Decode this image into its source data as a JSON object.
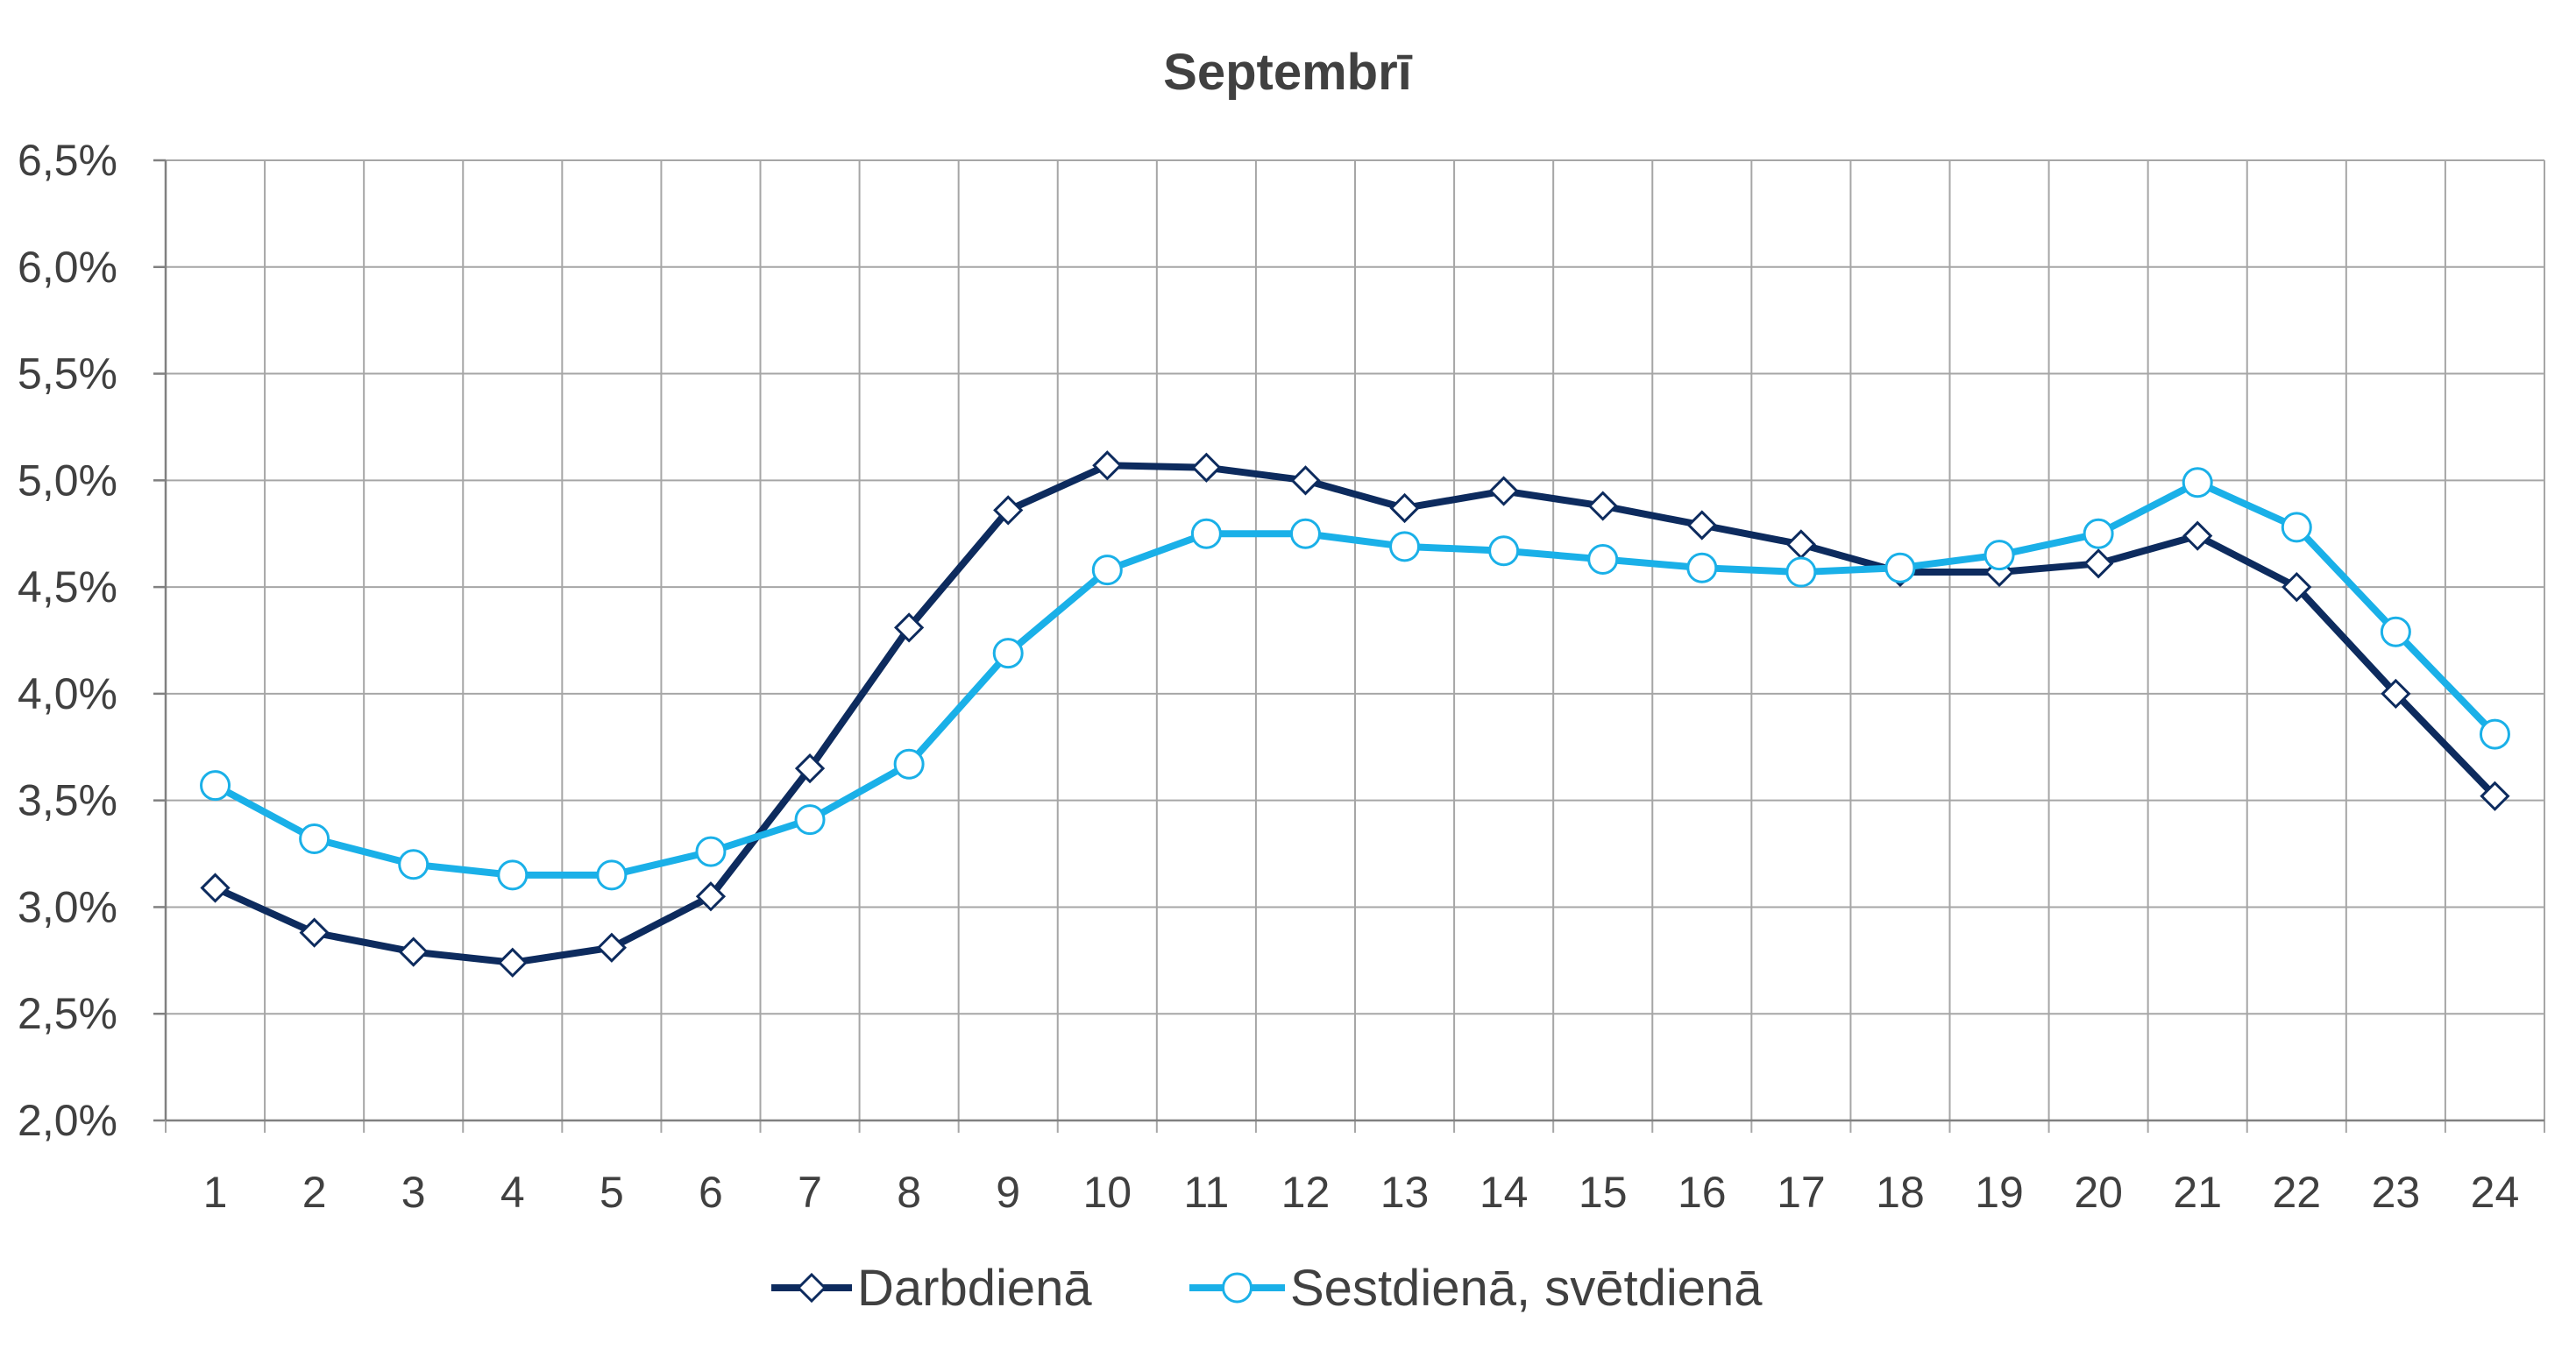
{
  "chart_data": {
    "type": "line",
    "title": "Septembrī",
    "xlabel": "",
    "ylabel": "",
    "categories": [
      "1",
      "2",
      "3",
      "4",
      "5",
      "6",
      "7",
      "8",
      "9",
      "10",
      "11",
      "12",
      "13",
      "14",
      "15",
      "16",
      "17",
      "18",
      "19",
      "20",
      "21",
      "22",
      "23",
      "24"
    ],
    "y_ticks": [
      "2,0%",
      "2,5%",
      "3,0%",
      "3,5%",
      "4,0%",
      "4,5%",
      "5,0%",
      "5,5%",
      "6,0%",
      "6,5%"
    ],
    "ylim": [
      2.0,
      6.5
    ],
    "y_unit": "%",
    "grid": true,
    "legend_position": "bottom",
    "series": [
      {
        "name": "Darbdienā",
        "color": "#0d2b5e",
        "marker": "diamond",
        "values": [
          3.09,
          2.88,
          2.79,
          2.74,
          2.81,
          3.05,
          3.65,
          4.31,
          4.86,
          5.07,
          5.06,
          5.0,
          4.87,
          4.95,
          4.88,
          4.79,
          4.7,
          4.57,
          4.57,
          4.61,
          4.74,
          4.5,
          4.0,
          3.52
        ]
      },
      {
        "name": "Sestdienā, svētdienā",
        "color": "#1ab0e8",
        "marker": "circle",
        "values": [
          3.57,
          3.32,
          3.2,
          3.15,
          3.15,
          3.26,
          3.41,
          3.67,
          4.19,
          4.58,
          4.75,
          4.75,
          4.69,
          4.67,
          4.63,
          4.59,
          4.57,
          4.59,
          4.65,
          4.75,
          4.99,
          4.78,
          4.29,
          3.81
        ]
      }
    ]
  }
}
